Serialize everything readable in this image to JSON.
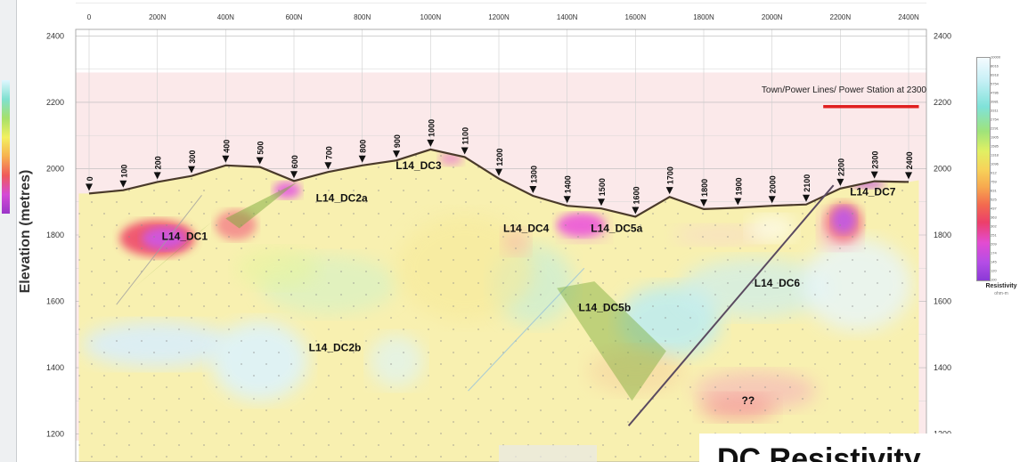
{
  "chart_data": {
    "type": "heatmap",
    "title": "",
    "ylabel": "Elevation (metres)",
    "xlabel": "",
    "x_ticks": [
      "0",
      "200N",
      "400N",
      "600N",
      "800N",
      "1000N",
      "1200N",
      "1400N",
      "1600N",
      "1800N",
      "2000N",
      "2200N",
      "2400N"
    ],
    "y_ticks": [
      1200,
      1400,
      1600,
      1800,
      2000,
      2200,
      2400
    ],
    "xlim": [
      0,
      2400
    ],
    "ylim": [
      1180,
      2420
    ],
    "grid": true,
    "annotation": "Town/Power Lines/ Power Station at 2300",
    "overlay_title": "DC Resistivity",
    "stations": [
      {
        "label": "0",
        "x": 0,
        "elev": 1925
      },
      {
        "label": "100",
        "x": 100,
        "elev": 1935
      },
      {
        "label": "200",
        "x": 200,
        "elev": 1960
      },
      {
        "label": "300",
        "x": 300,
        "elev": 1978
      },
      {
        "label": "400",
        "x": 400,
        "elev": 2010
      },
      {
        "label": "500",
        "x": 500,
        "elev": 2005
      },
      {
        "label": "600",
        "x": 600,
        "elev": 1963
      },
      {
        "label": "700",
        "x": 700,
        "elev": 1990
      },
      {
        "label": "800",
        "x": 800,
        "elev": 2010
      },
      {
        "label": "900",
        "x": 900,
        "elev": 2025
      },
      {
        "label": "1000",
        "x": 1000,
        "elev": 2058
      },
      {
        "label": "1100",
        "x": 1100,
        "elev": 2035
      },
      {
        "label": "1200",
        "x": 1200,
        "elev": 1970
      },
      {
        "label": "1300",
        "x": 1300,
        "elev": 1918
      },
      {
        "label": "1400",
        "x": 1400,
        "elev": 1888
      },
      {
        "label": "1500",
        "x": 1500,
        "elev": 1880
      },
      {
        "label": "1600",
        "x": 1600,
        "elev": 1855
      },
      {
        "label": "1700",
        "x": 1700,
        "elev": 1915
      },
      {
        "label": "1800",
        "x": 1800,
        "elev": 1878
      },
      {
        "label": "1900",
        "x": 1900,
        "elev": 1882
      },
      {
        "label": "2000",
        "x": 2000,
        "elev": 1888
      },
      {
        "label": "2100",
        "x": 2100,
        "elev": 1892
      },
      {
        "label": "2200",
        "x": 2200,
        "elev": 1940
      },
      {
        "label": "2300",
        "x": 2300,
        "elev": 1962
      },
      {
        "label": "2400",
        "x": 2400,
        "elev": 1960
      }
    ],
    "anomalies": [
      {
        "label": "L14_DC1",
        "x": 280,
        "elev": 1785
      },
      {
        "label": "L14_DC2a",
        "x": 740,
        "elev": 1900
      },
      {
        "label": "L14_DC2b",
        "x": 720,
        "elev": 1450
      },
      {
        "label": "L14_DC3",
        "x": 965,
        "elev": 1998
      },
      {
        "label": "L14_DC4",
        "x": 1280,
        "elev": 1810
      },
      {
        "label": "L14_DC5a",
        "x": 1545,
        "elev": 1810
      },
      {
        "label": "L14_DC5b",
        "x": 1510,
        "elev": 1570
      },
      {
        "label": "L14_DC6",
        "x": 2015,
        "elev": 1645
      },
      {
        "label": "L14_DC7",
        "x": 2295,
        "elev": 1920
      },
      {
        "label": "??",
        "x": 1930,
        "elev": 1290
      }
    ],
    "resistivity_legend": {
      "title": "Resistivity",
      "unit": "ohm-m",
      "values": [
        "10000",
        "8016",
        "6918",
        "5754",
        "4786",
        "3981",
        "3311",
        "2754",
        "2291",
        "1905",
        "1585",
        "1318",
        "1096",
        "912",
        "759",
        "631",
        "525",
        "437",
        "363",
        "302",
        "251",
        "209",
        "174",
        "145",
        "120",
        "100"
      ]
    },
    "colors": {
      "terrain": "#4a3a2a",
      "power_line": "#e02020",
      "high_res": "#f5fbff",
      "mid_res": "#f7d35a",
      "low_res": "#9a36c8",
      "station_marker": "#111111"
    }
  }
}
